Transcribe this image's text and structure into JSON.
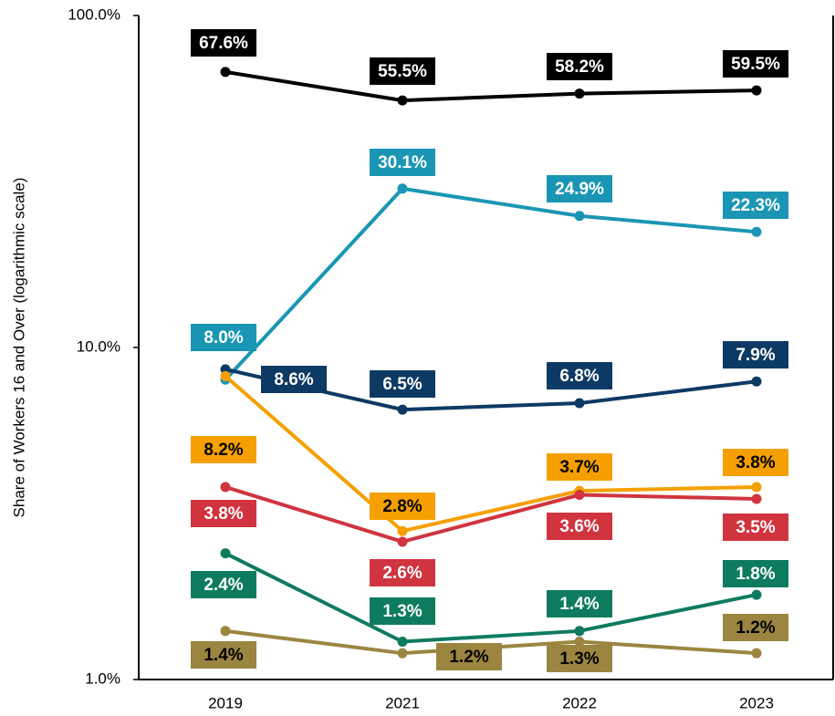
{
  "chart_data": {
    "type": "line",
    "ylabel": "Share of Workers 16 and Over (logarithmic scale)",
    "categories": [
      "2019",
      "2021",
      "2022",
      "2023"
    ],
    "log_scale": true,
    "grid": false,
    "ylim": [
      1,
      100
    ],
    "yticks": [
      {
        "value": 1,
        "label": "1.0%"
      },
      {
        "value": 10,
        "label": "10.0%"
      },
      {
        "value": 100,
        "label": "100.0%"
      }
    ],
    "series": [
      {
        "color": "#000000",
        "values": [
          67.6,
          55.5,
          58.2,
          59.5
        ],
        "value_labels": [
          "67.6%",
          "55.5%",
          "58.2%",
          "59.5%"
        ]
      },
      {
        "color": "#1a96b4",
        "values": [
          8.0,
          30.1,
          24.9,
          22.3
        ],
        "value_labels": [
          "8.0%",
          "30.1%",
          "24.9%",
          "22.3%"
        ]
      },
      {
        "color": "#0d3a64",
        "values": [
          8.6,
          6.5,
          6.8,
          7.9
        ],
        "value_labels": [
          "8.6%",
          "6.5%",
          "6.8%",
          "7.9%"
        ]
      },
      {
        "color": "#f5a000",
        "values": [
          8.2,
          2.8,
          3.7,
          3.8
        ],
        "value_labels": [
          "8.2%",
          "2.8%",
          "3.7%",
          "3.8%"
        ]
      },
      {
        "color": "#d0343f",
        "values": [
          3.8,
          2.6,
          3.6,
          3.5
        ],
        "value_labels": [
          "3.8%",
          "2.6%",
          "3.6%",
          "3.5%"
        ]
      },
      {
        "color": "#0e7b5f",
        "values": [
          2.4,
          1.3,
          1.4,
          1.8
        ],
        "value_labels": [
          "2.4%",
          "1.3%",
          "1.4%",
          "1.8%"
        ]
      },
      {
        "color": "#9b8540",
        "values": [
          1.4,
          1.2,
          1.3,
          1.2
        ],
        "value_labels": [
          "1.4%",
          "1.2%",
          "1.3%",
          "1.2%"
        ]
      }
    ]
  }
}
